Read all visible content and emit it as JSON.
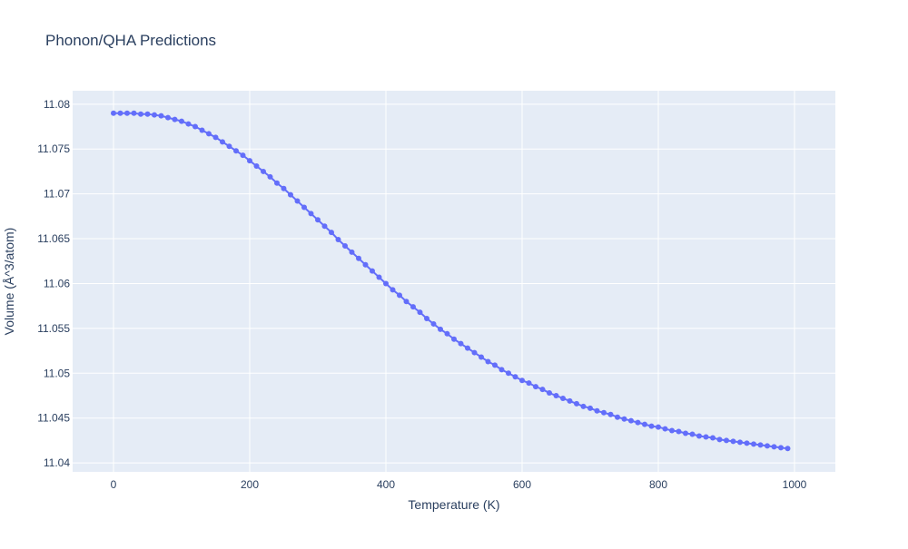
{
  "chart_data": {
    "type": "line",
    "title": "Phonon/QHA Predictions",
    "xlabel": "Temperature (K)",
    "ylabel": "Volume (Å^3/atom)",
    "xlim": [
      -60,
      1060
    ],
    "ylim": [
      11.039,
      11.0815
    ],
    "x_ticks": [
      0,
      200,
      400,
      600,
      800,
      1000
    ],
    "y_ticks": [
      11.04,
      11.045,
      11.05,
      11.055,
      11.06,
      11.065,
      11.07,
      11.075,
      11.08
    ],
    "x_tick_labels": [
      "0",
      "200",
      "400",
      "600",
      "800",
      "1000"
    ],
    "y_tick_labels": [
      "11.04",
      "11.045",
      "11.05",
      "11.055",
      "11.06",
      "11.065",
      "11.07",
      "11.075",
      "11.08"
    ],
    "grid": true,
    "colors": {
      "series": "#636efa",
      "plot_bg": "#e5ecf6",
      "grid": "#ffffff",
      "text": "#2a3f5f"
    },
    "series": [
      {
        "mode": "lines+markers",
        "x": [
          0,
          10,
          20,
          30,
          40,
          50,
          60,
          70,
          80,
          90,
          100,
          110,
          120,
          130,
          140,
          150,
          160,
          170,
          180,
          190,
          200,
          210,
          220,
          230,
          240,
          250,
          260,
          270,
          280,
          290,
          300,
          310,
          320,
          330,
          340,
          350,
          360,
          370,
          380,
          390,
          400,
          410,
          420,
          430,
          440,
          450,
          460,
          470,
          480,
          490,
          500,
          510,
          520,
          530,
          540,
          550,
          560,
          570,
          580,
          590,
          600,
          610,
          620,
          630,
          640,
          650,
          660,
          670,
          680,
          690,
          700,
          710,
          720,
          730,
          740,
          750,
          760,
          770,
          780,
          790,
          800,
          810,
          820,
          830,
          840,
          850,
          860,
          870,
          880,
          890,
          900,
          910,
          920,
          930,
          940,
          950,
          960,
          970,
          980,
          990
        ],
        "y": [
          11.079,
          11.079,
          11.079,
          11.079,
          11.0789,
          11.0789,
          11.0788,
          11.0787,
          11.0785,
          11.0783,
          11.0781,
          11.0778,
          11.0775,
          11.0771,
          11.0767,
          11.0763,
          11.0758,
          11.0753,
          11.0748,
          11.0743,
          11.0737,
          11.0731,
          11.0725,
          11.0719,
          11.0712,
          11.0706,
          11.0699,
          11.0692,
          11.0685,
          11.0678,
          11.0671,
          11.0664,
          11.0657,
          11.0649,
          11.0642,
          11.0635,
          11.0628,
          11.0621,
          11.0614,
          11.0607,
          11.06,
          11.0593,
          11.0587,
          11.058,
          11.0574,
          11.0568,
          11.0561,
          11.0555,
          11.0549,
          11.0544,
          11.0538,
          11.0533,
          11.0528,
          11.0523,
          11.0518,
          11.0513,
          11.0509,
          11.0504,
          11.05,
          11.0496,
          11.0492,
          11.0489,
          11.0485,
          11.0482,
          11.0478,
          11.0475,
          11.0472,
          11.0469,
          11.0466,
          11.0463,
          11.0461,
          11.0458,
          11.0456,
          11.0454,
          11.0451,
          11.0449,
          11.0447,
          11.0445,
          11.0443,
          11.0441,
          11.044,
          11.0438,
          11.0436,
          11.0435,
          11.0433,
          11.0432,
          11.043,
          11.0429,
          11.0428,
          11.0426,
          11.0425,
          11.0424,
          11.0423,
          11.0422,
          11.0421,
          11.042,
          11.0419,
          11.0418,
          11.0417,
          11.0416
        ]
      }
    ]
  }
}
